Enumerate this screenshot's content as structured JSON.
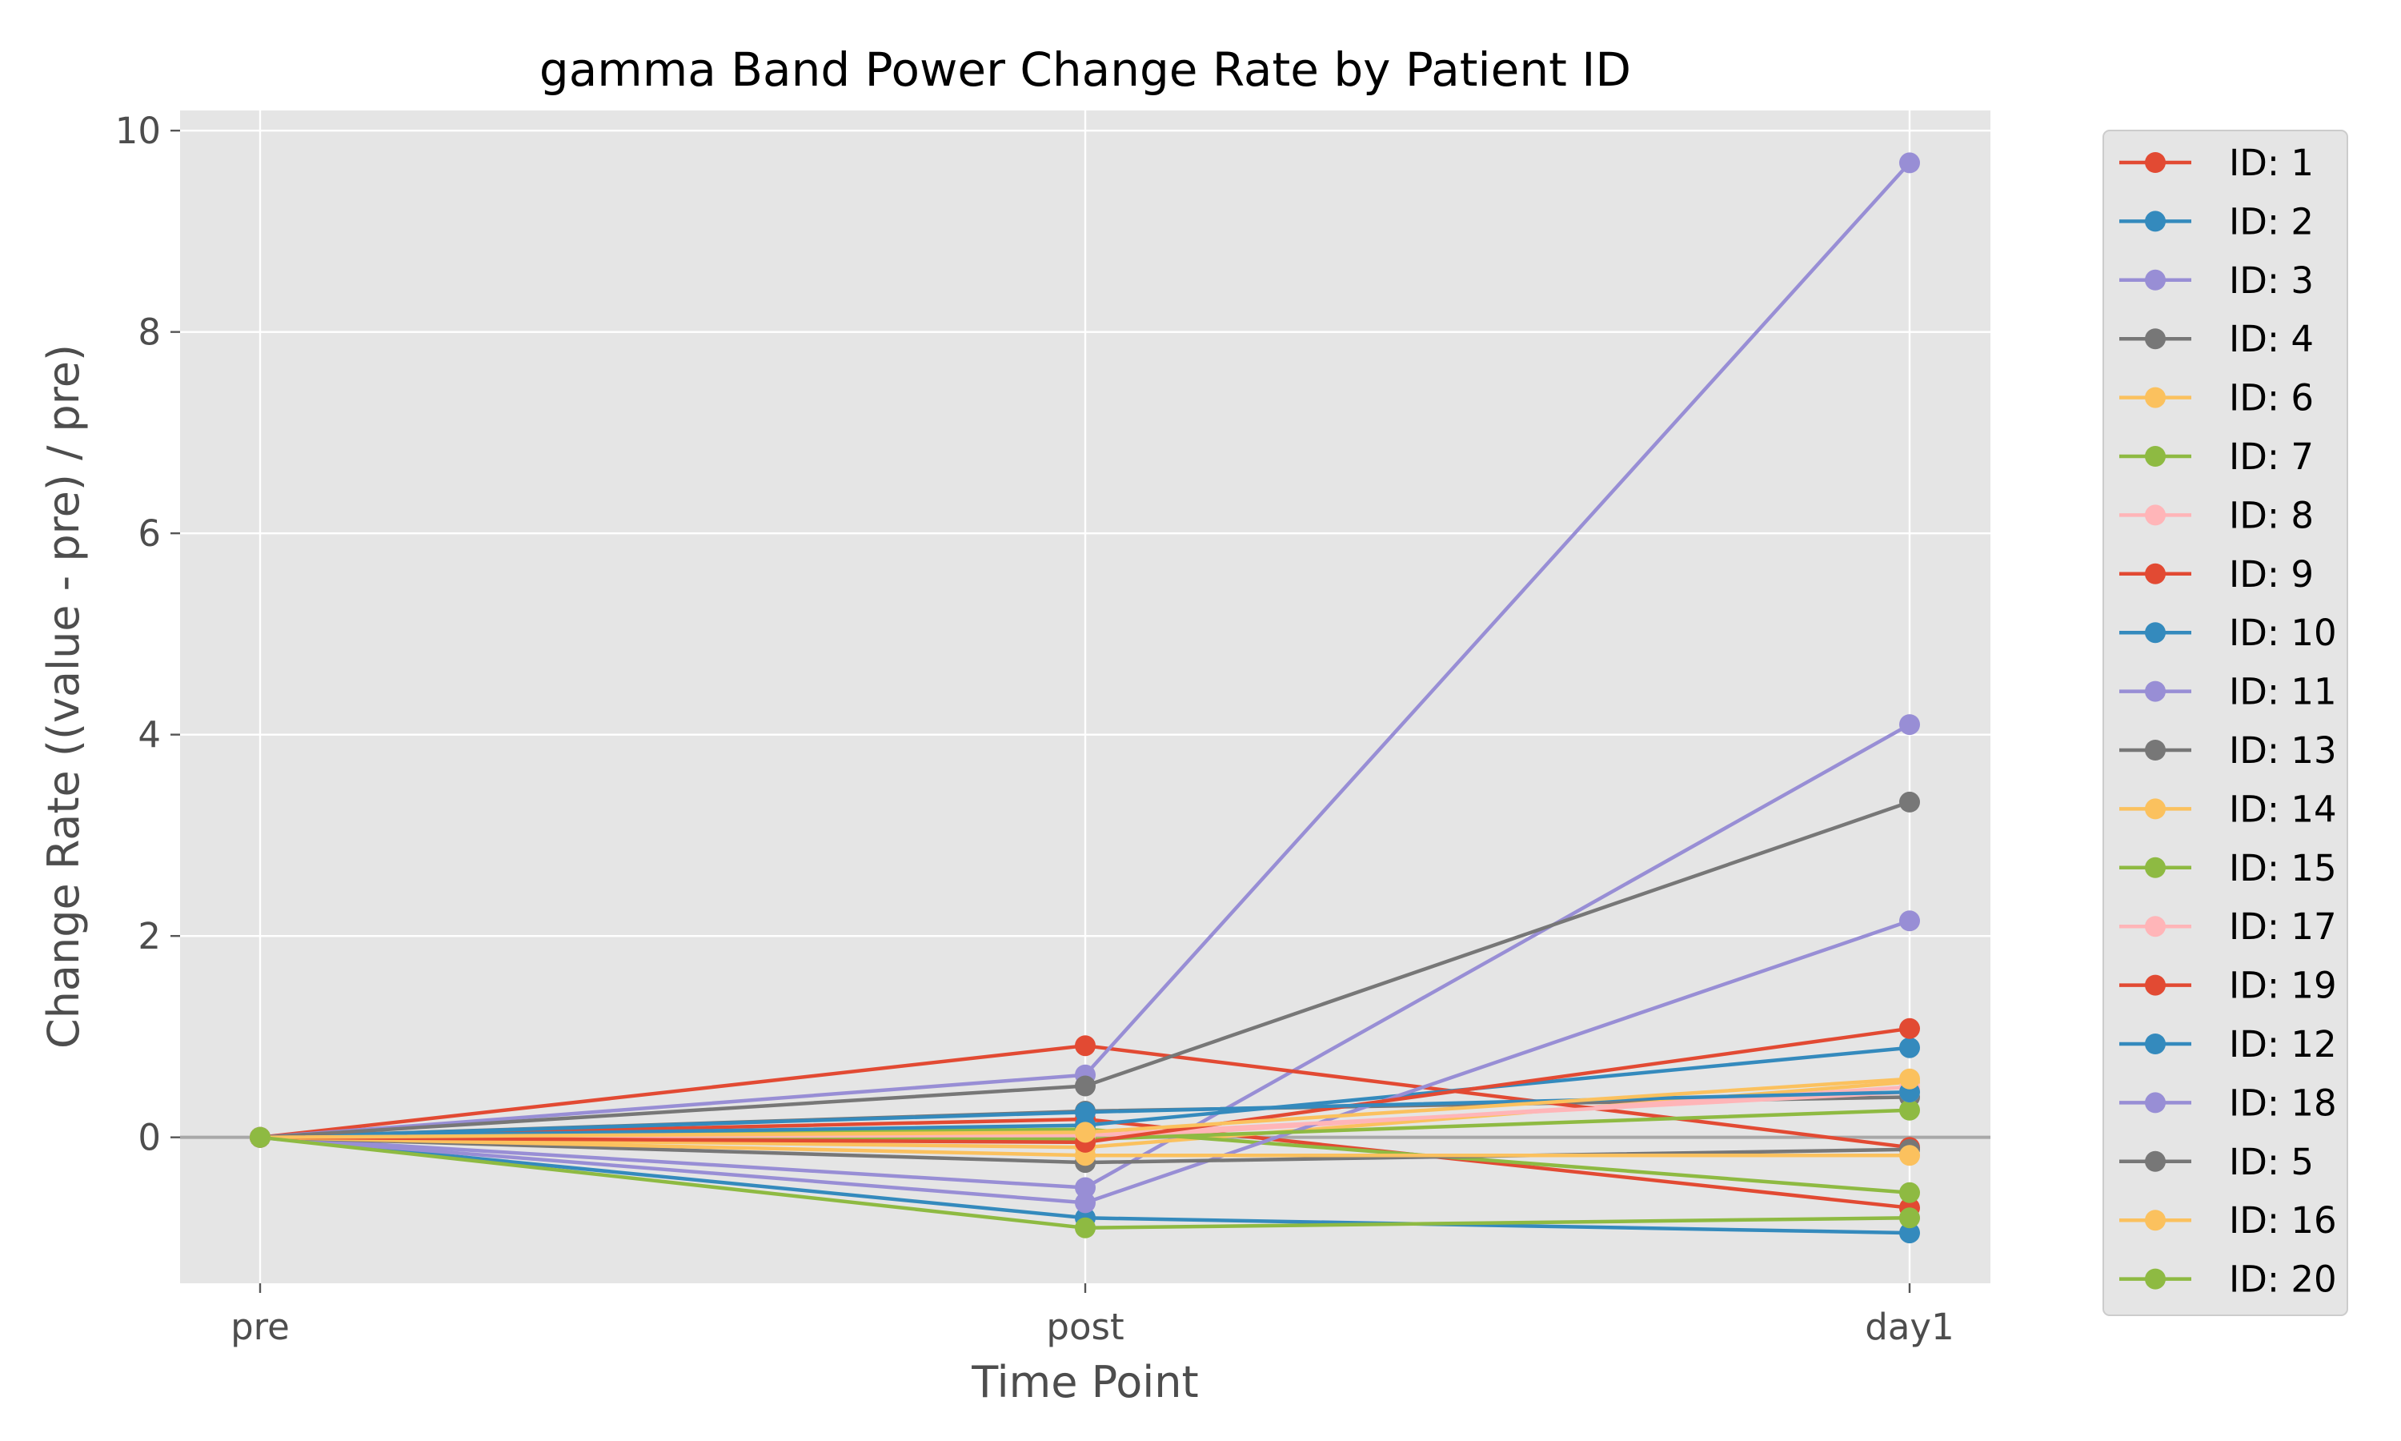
{
  "chart_data": {
    "type": "line",
    "title": "gamma Band Power Change Rate by Patient ID",
    "xlabel": "Time Point",
    "ylabel": "Change Rate ((value - pre) / pre)",
    "categories": [
      "pre",
      "post",
      "day1"
    ],
    "yticks": [
      0,
      2,
      4,
      6,
      8,
      10
    ],
    "ylim": [
      -1.45,
      10.2
    ],
    "grid": true,
    "zero_line": true,
    "legend_position": "outside-right",
    "series": [
      {
        "name": "ID: 1",
        "color": "#E24A33",
        "values": [
          0,
          0.18,
          -0.7
        ]
      },
      {
        "name": "ID: 2",
        "color": "#348ABD",
        "values": [
          0,
          -0.8,
          -0.95
        ]
      },
      {
        "name": "ID: 3",
        "color": "#988ED5",
        "values": [
          0,
          -0.5,
          4.1
        ]
      },
      {
        "name": "ID: 4",
        "color": "#777777",
        "values": [
          0,
          0.26,
          0.4
        ]
      },
      {
        "name": "ID: 6",
        "color": "#FBC15E",
        "values": [
          0,
          -0.1,
          0.55
        ]
      },
      {
        "name": "ID: 7",
        "color": "#8EBA42",
        "values": [
          0,
          0.08,
          -0.55
        ]
      },
      {
        "name": "ID: 8",
        "color": "#FFB5B8",
        "values": [
          0,
          -0.02,
          0.5
        ]
      },
      {
        "name": "ID: 9",
        "color": "#E24A33",
        "values": [
          0,
          0.91,
          -0.1
        ]
      },
      {
        "name": "ID: 10",
        "color": "#348ABD",
        "values": [
          0,
          0.12,
          0.89
        ]
      },
      {
        "name": "ID: 11",
        "color": "#988ED5",
        "values": [
          0,
          -0.65,
          2.15
        ]
      },
      {
        "name": "ID: 13",
        "color": "#777777",
        "values": [
          0,
          -0.25,
          -0.12
        ]
      },
      {
        "name": "ID: 14",
        "color": "#FBC15E",
        "values": [
          0,
          -0.18,
          -0.18
        ]
      },
      {
        "name": "ID: 15",
        "color": "#8EBA42",
        "values": [
          0,
          -0.02,
          0.27
        ]
      },
      {
        "name": "ID: 17",
        "color": "#FFB5B8",
        "values": [
          0,
          0.02,
          0.45
        ]
      },
      {
        "name": "ID: 19",
        "color": "#E24A33",
        "values": [
          0,
          -0.05,
          1.08
        ]
      },
      {
        "name": "ID: 12",
        "color": "#348ABD",
        "values": [
          0,
          0.25,
          0.45
        ]
      },
      {
        "name": "ID: 18",
        "color": "#988ED5",
        "values": [
          0,
          0.62,
          9.68
        ]
      },
      {
        "name": "ID: 5",
        "color": "#777777",
        "values": [
          0,
          0.51,
          3.33
        ]
      },
      {
        "name": "ID: 16",
        "color": "#FBC15E",
        "values": [
          0,
          0.05,
          0.58
        ]
      },
      {
        "name": "ID: 20",
        "color": "#8EBA42",
        "values": [
          0,
          -0.9,
          -0.8
        ]
      }
    ]
  }
}
